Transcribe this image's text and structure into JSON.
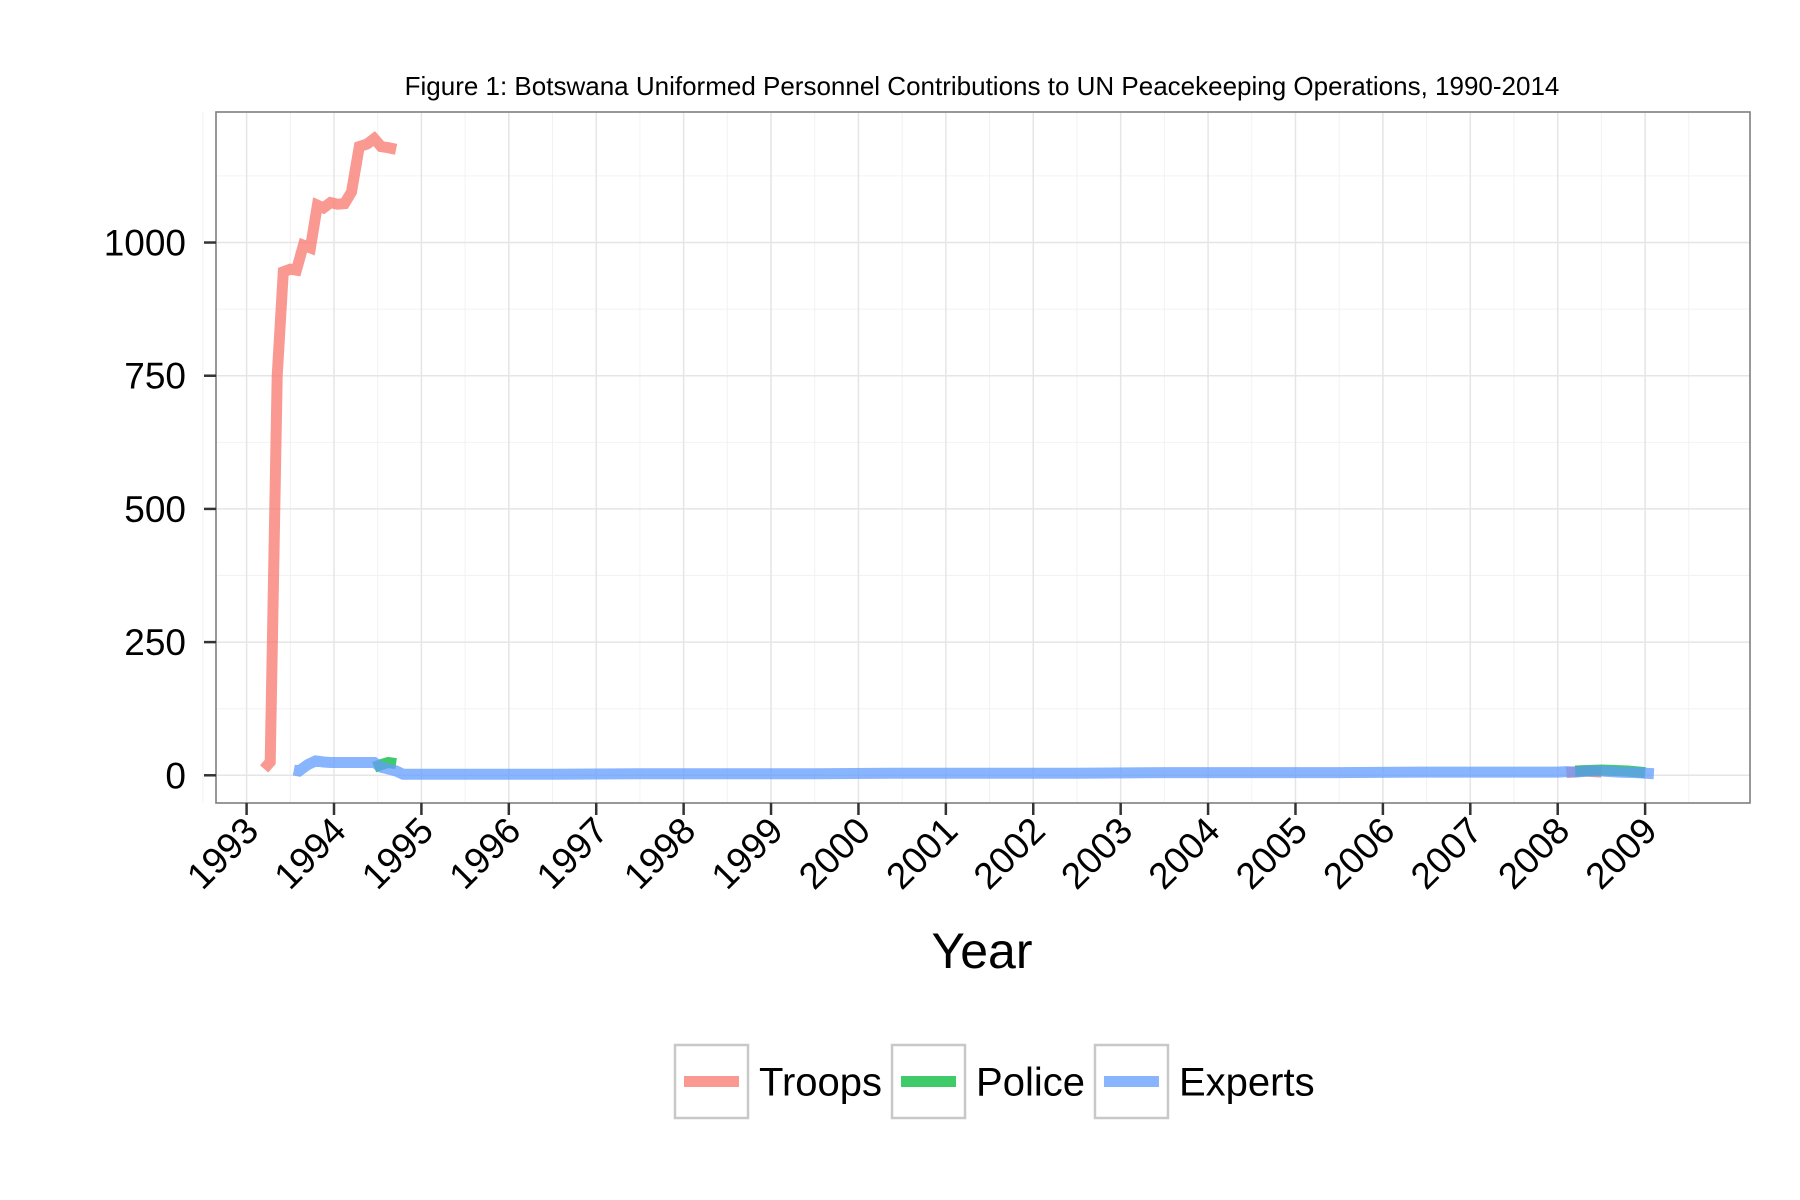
{
  "chart_data": {
    "type": "line",
    "title": "Figure 1: Botswana Uniformed Personnel Contributions to UN Peacekeeping Operations, 1990-2014",
    "xlabel": "Year",
    "ylabel": "",
    "xlim": [
      1992.65,
      2010.2
    ],
    "ylim": [
      -52,
      1245
    ],
    "x_ticks": [
      "1993",
      "1994",
      "1995",
      "1996",
      "1997",
      "1998",
      "1999",
      "2000",
      "2001",
      "2002",
      "2003",
      "2004",
      "2005",
      "2006",
      "2007",
      "2008",
      "2009"
    ],
    "y_ticks": [
      "0",
      "250",
      "500",
      "750",
      "1000"
    ],
    "grid": true,
    "legend_position": "bottom",
    "series": [
      {
        "name": "Troops",
        "color": "#f8766d",
        "x": [
          1993.2,
          1993.27,
          1993.35,
          1993.42,
          1993.5,
          1993.57,
          1993.65,
          1993.73,
          1993.81,
          1993.88,
          1993.96,
          1994.04,
          1994.12,
          1994.2,
          1994.29,
          1994.38,
          1994.46,
          1994.54,
          1994.62,
          1994.71
        ],
        "values": [
          12,
          25,
          750,
          945,
          950,
          948,
          995,
          990,
          1070,
          1065,
          1075,
          1072,
          1073,
          1095,
          1180,
          1185,
          1195,
          1180,
          1178,
          1175
        ]
      },
      {
        "name": "Troops",
        "color": "#f8766d",
        "x": [
          2008.1,
          2008.3,
          2008.5
        ],
        "values": [
          5,
          8,
          6
        ]
      },
      {
        "name": "Police",
        "color": "#00ba38",
        "x": [
          1994.46,
          1994.54,
          1994.62,
          1994.71
        ],
        "values": [
          15,
          20,
          24,
          22
        ]
      },
      {
        "name": "Police",
        "color": "#00ba38",
        "x": [
          2008.2,
          2008.5,
          2008.8,
          2009.0
        ],
        "values": [
          8,
          10,
          8,
          5
        ]
      },
      {
        "name": "Experts",
        "color": "#619cff",
        "x": [
          1993.54,
          1993.6,
          1993.7,
          1993.79,
          1993.88,
          1993.96,
          1994.2,
          1994.46,
          1994.54,
          1994.62,
          1994.71,
          1994.79,
          1995.5,
          1996.5,
          1997.5,
          1998.5,
          1999.5,
          2000.5,
          2001.5,
          2002.5,
          2003.5,
          2004.5,
          2005.5,
          2006.5,
          2007.5,
          2008.0,
          2008.1,
          2008.2,
          2008.35,
          2008.5,
          2008.7,
          2008.9,
          2009.1
        ],
        "values": [
          10,
          8,
          20,
          27,
          25,
          24,
          24,
          24,
          15,
          12,
          8,
          2,
          2,
          2,
          3,
          3,
          3,
          4,
          4,
          4,
          5,
          5,
          5,
          6,
          6,
          6,
          7,
          6,
          8,
          8,
          6,
          5,
          3
        ]
      }
    ]
  },
  "legend": {
    "items": [
      {
        "label": "Troops",
        "color": "#f8766d"
      },
      {
        "label": "Police",
        "color": "#00ba38"
      },
      {
        "label": "Experts",
        "color": "#619cff"
      }
    ]
  }
}
